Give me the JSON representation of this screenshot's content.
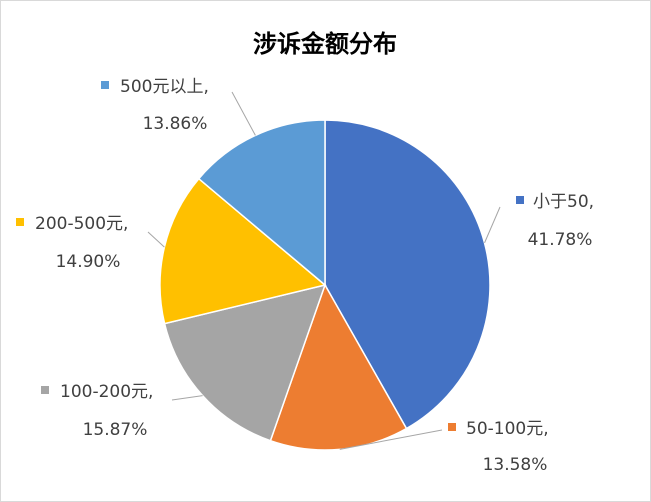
{
  "chart_data": {
    "type": "pie",
    "title": "涉诉金额分布",
    "categories": [
      "小于50",
      "50-100元",
      "100-200元",
      "200-500元",
      "500元以上"
    ],
    "values": [
      41.78,
      13.58,
      15.87,
      14.9,
      13.86
    ],
    "value_labels": [
      "41.78%",
      "13.58%",
      "15.87%",
      "14.90%",
      "13.86%"
    ],
    "label_separator": ",",
    "colors": [
      "#4472c4",
      "#ed7d31",
      "#a5a5a5",
      "#ffc000",
      "#5b9bd5"
    ]
  }
}
